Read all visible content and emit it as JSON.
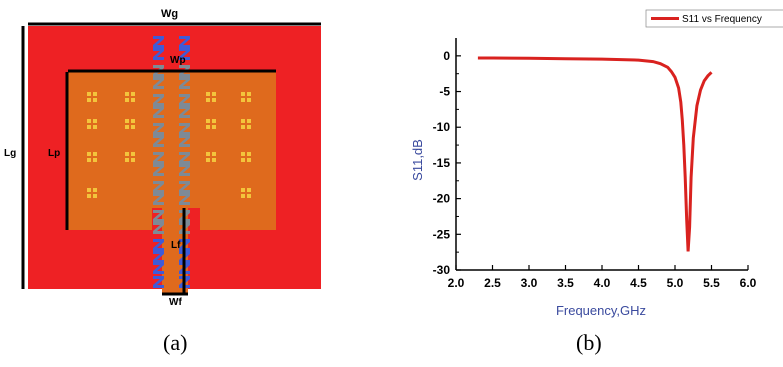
{
  "antenna": {
    "labels": {
      "wg": "Wg",
      "wp": "Wp",
      "lg": "Lg",
      "lp": "Lp",
      "lf": "Lf",
      "wf": "Wf"
    },
    "colors": {
      "ground": "#ee2124",
      "patch": "#df6a1d",
      "slot": "#f3c43c",
      "feed_stub": "#ee2124",
      "z_blue": "#3e5bd8",
      "z_grey": "#7e8a96"
    }
  },
  "captions": {
    "a": "(a)",
    "b": "(b)"
  },
  "chart_data": {
    "type": "line",
    "title": "",
    "xlabel": "Frequency,GHz",
    "ylabel": "S11,dB",
    "xlim": [
      2.0,
      6.0
    ],
    "ylim": [
      -30,
      2.5
    ],
    "xticks": [
      "2.0",
      "2.5",
      "3.0",
      "3.5",
      "4.0",
      "4.5",
      "5.0",
      "5.5",
      "6.0"
    ],
    "yticks": [
      "0",
      "-5",
      "-10",
      "-15",
      "-20",
      "-25",
      "-30"
    ],
    "legend_position": "top-right",
    "series": [
      {
        "name": "S11 vs Frequency",
        "color": "#d9221f",
        "points": [
          [
            2.3,
            -0.3
          ],
          [
            2.5,
            -0.3
          ],
          [
            3.0,
            -0.35
          ],
          [
            3.5,
            -0.4
          ],
          [
            4.0,
            -0.45
          ],
          [
            4.5,
            -0.6
          ],
          [
            4.7,
            -0.8
          ],
          [
            4.8,
            -1.1
          ],
          [
            4.9,
            -1.6
          ],
          [
            4.95,
            -2.2
          ],
          [
            5.0,
            -3.0
          ],
          [
            5.05,
            -4.5
          ],
          [
            5.08,
            -6.5
          ],
          [
            5.1,
            -9.0
          ],
          [
            5.12,
            -12.5
          ],
          [
            5.14,
            -17.0
          ],
          [
            5.16,
            -23.0
          ],
          [
            5.18,
            -27.4
          ],
          [
            5.2,
            -24.0
          ],
          [
            5.22,
            -17.0
          ],
          [
            5.25,
            -11.5
          ],
          [
            5.3,
            -7.0
          ],
          [
            5.35,
            -4.8
          ],
          [
            5.4,
            -3.5
          ],
          [
            5.45,
            -2.8
          ],
          [
            5.5,
            -2.3
          ]
        ]
      }
    ]
  }
}
